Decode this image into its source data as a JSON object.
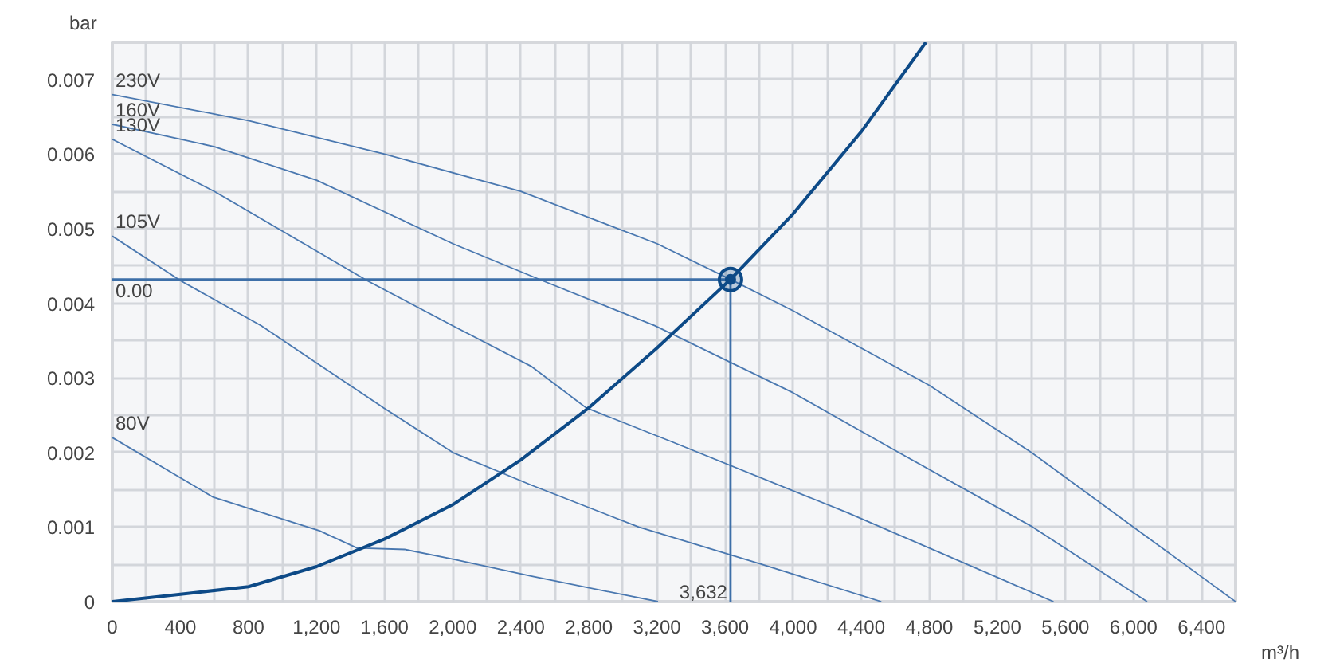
{
  "chart_data": {
    "type": "line",
    "xlabel": "m³/h",
    "ylabel": "bar",
    "xlim": [
      0,
      6600
    ],
    "ylim": [
      0,
      0.0075
    ],
    "xticks": [
      0,
      {
        "value": 200,
        "label": null
      },
      400,
      {
        "value": 600,
        "label": null
      },
      800,
      {
        "value": 1000,
        "label": null
      },
      {
        "value": 1200,
        "label": "1,200"
      },
      {
        "value": 1400,
        "label": null
      },
      {
        "value": 1600,
        "label": "1,600"
      },
      {
        "value": 1800,
        "label": null
      },
      {
        "value": 2000,
        "label": "2,000"
      },
      {
        "value": 2200,
        "label": null
      },
      {
        "value": 2400,
        "label": "2,400"
      },
      {
        "value": 2600,
        "label": null
      },
      {
        "value": 2800,
        "label": "2,800"
      },
      {
        "value": 3000,
        "label": null
      },
      {
        "value": 3200,
        "label": "3,200"
      },
      {
        "value": 3400,
        "label": null
      },
      {
        "value": 3600,
        "label": "3,600"
      },
      {
        "value": 3800,
        "label": null
      },
      {
        "value": 4000,
        "label": "4,000"
      },
      {
        "value": 4200,
        "label": null
      },
      {
        "value": 4400,
        "label": "4,400"
      },
      {
        "value": 4600,
        "label": null
      },
      {
        "value": 4800,
        "label": "4,800"
      },
      {
        "value": 5000,
        "label": null
      },
      {
        "value": 5200,
        "label": "5,200"
      },
      {
        "value": 5400,
        "label": null
      },
      {
        "value": 5600,
        "label": "5,600"
      },
      {
        "value": 5800,
        "label": null
      },
      {
        "value": 6000,
        "label": "6,000"
      },
      {
        "value": 6200,
        "label": null
      },
      {
        "value": 6400,
        "label": "6,400"
      },
      {
        "value": 6600,
        "label": null
      }
    ],
    "yticks": [
      0,
      {
        "value": 0.0005,
        "label": null
      },
      0.001,
      {
        "value": 0.0015,
        "label": null
      },
      0.002,
      {
        "value": 0.0025,
        "label": null
      },
      0.003,
      {
        "value": 0.0035,
        "label": null
      },
      0.004,
      {
        "value": 0.0045,
        "label": null
      },
      0.005,
      {
        "value": 0.0055,
        "label": null
      },
      0.006,
      {
        "value": 0.0065,
        "label": null
      },
      0.007,
      {
        "value": 0.0075,
        "label": null
      }
    ],
    "grid": true,
    "series": [
      {
        "name": "230V",
        "color": "#4a78b0",
        "x": [
          0,
          800,
          1600,
          2400,
          3200,
          3632,
          4000,
          4800,
          5400,
          6000,
          6600
        ],
        "values": [
          0.0068,
          0.00645,
          0.006,
          0.0055,
          0.0048,
          0.00432,
          0.0039,
          0.0029,
          0.002,
          0.001,
          0
        ]
      },
      {
        "name": "160V",
        "color": "#4a78b0",
        "x": [
          0,
          600,
          1200,
          2000,
          2531,
          3187,
          4000,
          4620,
          5408,
          6080
        ],
        "values": [
          0.0064,
          0.0061,
          0.00565,
          0.0048,
          0.0043,
          0.0037,
          0.0028,
          0.002,
          0.001,
          0
        ]
      },
      {
        "name": "130V",
        "color": "#4a78b0",
        "x": [
          0,
          600,
          1500,
          2000,
          2465,
          2783,
          3280,
          4311,
          5530
        ],
        "values": [
          0.0062,
          0.0055,
          0.0043,
          0.0037,
          0.00315,
          0.0026,
          0.00215,
          0.0012,
          0
        ]
      },
      {
        "name": "105V",
        "color": "#4a78b0",
        "x": [
          0,
          403,
          875,
          1200,
          1593,
          2000,
          2465,
          3093,
          3815,
          4518
        ],
        "values": [
          0.0049,
          0.0043,
          0.0037,
          0.0032,
          0.0026,
          0.002,
          0.00156,
          0.001,
          0.0005,
          0
        ]
      },
      {
        "name": "80V",
        "color": "#4a78b0",
        "x": [
          0,
          593,
          1218,
          1437,
          1718,
          2000,
          2465,
          3206
        ],
        "values": [
          0.0022,
          0.0014,
          0.00095,
          0.00072,
          0.0007,
          0.00057,
          0.00034,
          0
        ]
      },
      {
        "type": "line",
        "color": "#0d4a87",
        "x": [
          0,
          400,
          800,
          1200,
          1600,
          2000,
          2400,
          2800,
          3200,
          3632,
          4000,
          4400,
          4780
        ],
        "values": [
          0,
          0.0001,
          0.0002,
          0.00047,
          0.00084,
          0.0013,
          0.0019,
          0.0026,
          0.0034,
          0.00432,
          0.0052,
          0.0063,
          0.0075
        ]
      },
      {
        "type": "line",
        "color": "#3d6fa8",
        "x": [
          0,
          3632
        ],
        "values": [
          0.00432,
          0.00432
        ]
      },
      {
        "type": "line",
        "color": "#3d6fa8",
        "x": [
          3632,
          3632
        ],
        "values": [
          0,
          0.00432
        ]
      },
      {
        "type": "scatter",
        "marker": "circle",
        "color": "#0d4a87",
        "x": [
          3632
        ],
        "values": [
          0.00432
        ]
      }
    ],
    "annotations": [
      {
        "text": "0.00",
        "x": 0,
        "y": 0.00432
      },
      {
        "text": "3,632",
        "x": 3632,
        "y": 0
      }
    ]
  }
}
